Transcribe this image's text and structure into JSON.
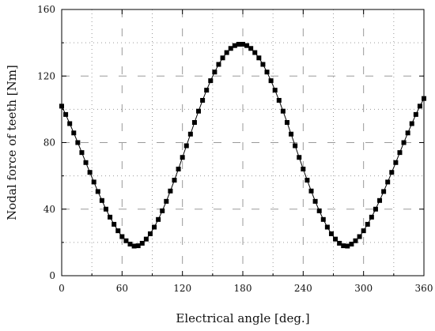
{
  "chart_data": {
    "type": "scatter",
    "title": "",
    "xlabel": "Electrical angle [deg.]",
    "ylabel": "Nodal force of teeth [Nm]",
    "xlim": [
      0,
      360
    ],
    "ylim": [
      0,
      160
    ],
    "xticks": [
      0,
      60,
      120,
      180,
      240,
      300,
      360
    ],
    "yticks": [
      0,
      40,
      80,
      120,
      160
    ],
    "xtick_labels": [
      "0",
      "60",
      "120",
      "180",
      "240",
      "300",
      "360"
    ],
    "ytick_labels": [
      "0",
      "40",
      "80",
      "120",
      "160"
    ],
    "grid": true,
    "marker": "square",
    "connected": true,
    "colors": {
      "marker": "#000000",
      "line": "#000000",
      "grid": "#9a9a9a",
      "frame": "#000000"
    },
    "series": [
      {
        "x": [
          0,
          4,
          8,
          12,
          16,
          20,
          24,
          28,
          32,
          36,
          40,
          44,
          48,
          52,
          56,
          60,
          64,
          68,
          72,
          76,
          80,
          84,
          88,
          92,
          96,
          100,
          104,
          108,
          112,
          116,
          120,
          124,
          128,
          132,
          136,
          140,
          144,
          148,
          152,
          156,
          160,
          164,
          168,
          172,
          176,
          180,
          184,
          188,
          192,
          196,
          200,
          204,
          208,
          212,
          216,
          220,
          224,
          228,
          232,
          236,
          240,
          244,
          248,
          252,
          256,
          260,
          264,
          268,
          272,
          276,
          280,
          284,
          288,
          292,
          296,
          300,
          304,
          308,
          312,
          316,
          320,
          324,
          328,
          332,
          336,
          340,
          344,
          348,
          352,
          356,
          360
        ],
        "y": [
          101.9,
          96.9,
          91.4,
          85.8,
          80.0,
          74.0,
          68.0,
          62.1,
          56.3,
          50.6,
          45.2,
          40.0,
          35.2,
          30.9,
          27.0,
          23.5,
          21.0,
          19.0,
          17.8,
          18.0,
          19.5,
          22.0,
          25.2,
          29.2,
          33.8,
          39.0,
          44.7,
          50.9,
          57.4,
          64.1,
          71.1,
          78.1,
          85.1,
          92.1,
          98.9,
          105.4,
          111.5,
          117.2,
          122.4,
          127.0,
          130.9,
          134.1,
          136.6,
          138.3,
          139.1,
          139.1,
          138.3,
          136.6,
          134.1,
          130.9,
          127.0,
          122.4,
          117.2,
          111.5,
          105.4,
          98.9,
          92.1,
          85.1,
          78.1,
          71.1,
          64.1,
          57.4,
          50.9,
          44.7,
          39.0,
          33.8,
          29.2,
          25.2,
          22.0,
          19.5,
          18.0,
          17.8,
          19.0,
          21.0,
          23.5,
          27.0,
          30.9,
          35.2,
          40.0,
          45.2,
          50.6,
          56.3,
          62.1,
          68.0,
          74.0,
          80.0,
          85.8,
          91.4,
          96.9,
          101.9,
          106.5
        ]
      }
    ]
  }
}
